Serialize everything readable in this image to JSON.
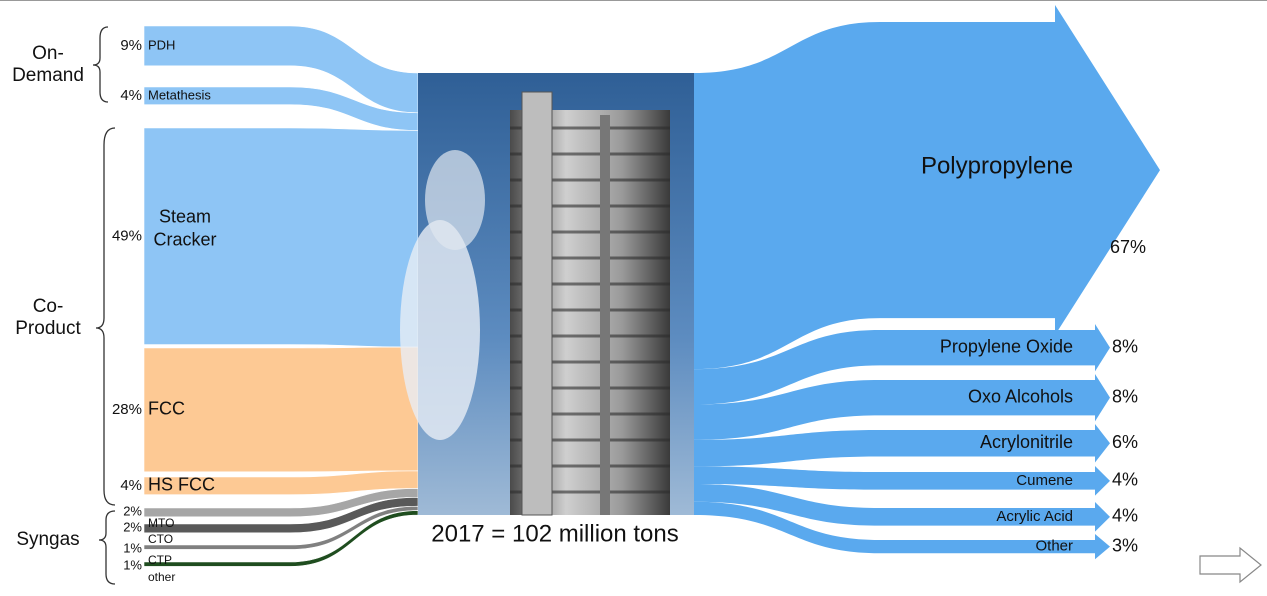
{
  "chart_data": {
    "type": "sankey",
    "caption": "2017 = 102 million tons",
    "groups": [
      {
        "label": [
          "On-",
          "Demand"
        ],
        "inputs": [
          {
            "name": [
              "PDH"
            ],
            "value": 9,
            "value_label": "9%",
            "color": "#8ec5f5"
          },
          {
            "name": [
              "Metathesis"
            ],
            "value": 4,
            "value_label": "4%",
            "color": "#8ec5f5"
          }
        ]
      },
      {
        "label": [
          "Co-",
          "Product"
        ],
        "inputs": [
          {
            "name": [
              "Steam",
              "Cracker"
            ],
            "value": 49,
            "value_label": "49%",
            "color": "#8ec5f5"
          },
          {
            "name": [
              "FCC"
            ],
            "value": 28,
            "value_label": "28%",
            "color": "#fdc994"
          },
          {
            "name": [
              "HS FCC"
            ],
            "value": 4,
            "value_label": "4%",
            "color": "#fdc994"
          }
        ]
      },
      {
        "label": [
          "Syngas"
        ],
        "inputs": [
          {
            "name": [
              "MTO"
            ],
            "value": 2,
            "value_label": "2%",
            "color": "#a6a6a6"
          },
          {
            "name": [
              "CTO"
            ],
            "value": 2,
            "value_label": "2%",
            "color": "#595959"
          },
          {
            "name": [
              "CTP"
            ],
            "value": 1,
            "value_label": "1%",
            "color": "#808080"
          },
          {
            "name": [
              "other"
            ],
            "value": 1,
            "value_label": "1%",
            "color": "#1f4d1f"
          }
        ]
      }
    ],
    "outputs": [
      {
        "name": "Polypropylene",
        "value": 67,
        "value_label": "67%"
      },
      {
        "name": "Propylene Oxide",
        "value": 8,
        "value_label": "8%"
      },
      {
        "name": "Oxo Alcohols",
        "value": 8,
        "value_label": "8%"
      },
      {
        "name": "Acrylonitrile",
        "value": 6,
        "value_label": "6%"
      },
      {
        "name": "Cumene",
        "value": 4,
        "value_label": "4%"
      },
      {
        "name": "Acrylic Acid",
        "value": 4,
        "value_label": "4%"
      },
      {
        "name": "Other",
        "value": 3,
        "value_label": "3%"
      }
    ],
    "output_color": "#5aa9ee"
  }
}
